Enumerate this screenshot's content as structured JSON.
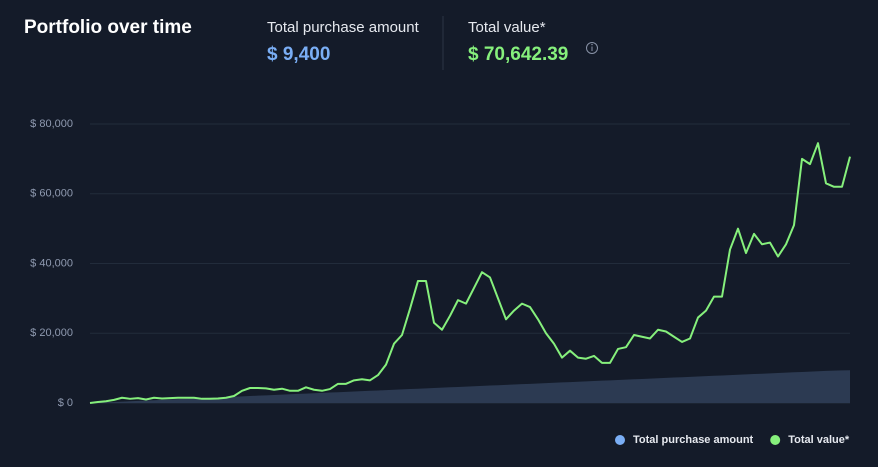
{
  "title": "Portfolio over time",
  "summary": [
    {
      "label": "Total purchase amount",
      "value": "$ 9,400"
    },
    {
      "label": "Total value*",
      "value": "$ 70,642.39"
    }
  ],
  "chart_data": {
    "type": "line",
    "ylim": [
      0,
      80000
    ],
    "yticks": [
      {
        "value": 0,
        "label": "$ 0"
      },
      {
        "value": 20000,
        "label": "$ 20,000"
      },
      {
        "value": 40000,
        "label": "$ 40,000"
      },
      {
        "value": 60000,
        "label": "$ 60,000"
      },
      {
        "value": 80000,
        "label": "$ 80,000"
      }
    ],
    "grid": true,
    "legend": "bottom-right",
    "series": [
      {
        "name": "Total purchase amount",
        "color": "#7aaef5",
        "area_color": "#2c3a52",
        "values": [
          0,
          100,
          200,
          300,
          400,
          500,
          600,
          700,
          800,
          900,
          1000,
          1100,
          1200,
          1300,
          1400,
          1500,
          1600,
          1700,
          1800,
          1900,
          2000,
          2100,
          2200,
          2300,
          2400,
          2500,
          2600,
          2700,
          2800,
          2900,
          3000,
          3100,
          3200,
          3300,
          3400,
          3500,
          3600,
          3700,
          3800,
          3900,
          4000,
          4100,
          4200,
          4300,
          4400,
          4500,
          4600,
          4700,
          4800,
          4900,
          5000,
          5100,
          5200,
          5300,
          5400,
          5500,
          5600,
          5700,
          5800,
          5900,
          6000,
          6100,
          6200,
          6300,
          6400,
          6500,
          6600,
          6700,
          6800,
          6900,
          7000,
          7100,
          7200,
          7300,
          7400,
          7500,
          7600,
          7700,
          7800,
          7900,
          8000,
          8100,
          8200,
          8300,
          8400,
          8500,
          8600,
          8700,
          8800,
          8900,
          9000,
          9100,
          9200,
          9300,
          9350,
          9400
        ]
      },
      {
        "name": "Total value*",
        "color": "#86f07c",
        "values": [
          0,
          300,
          500,
          900,
          1500,
          1200,
          1400,
          1000,
          1500,
          1300,
          1400,
          1500,
          1500,
          1500,
          1200,
          1200,
          1300,
          1500,
          2000,
          3500,
          4300,
          4300,
          4200,
          3800,
          4100,
          3500,
          3500,
          4500,
          3800,
          3500,
          4000,
          5500,
          5500,
          6500,
          6800,
          6500,
          8000,
          11000,
          17000,
          19500,
          27000,
          35000,
          35000,
          23000,
          21000,
          25000,
          29500,
          28500,
          33000,
          37500,
          36000,
          30000,
          24000,
          26500,
          28500,
          27500,
          24000,
          20000,
          17000,
          13000,
          15000,
          13000,
          12700,
          13500,
          11500,
          11500,
          15500,
          16000,
          19500,
          19000,
          18500,
          21000,
          20500,
          19000,
          17500,
          18500,
          24500,
          26500,
          30500,
          30500,
          44000,
          50000,
          43000,
          48500,
          45500,
          46000,
          42000,
          45500,
          51000,
          70000,
          68500,
          74500,
          63000,
          62000,
          62000,
          70642.39
        ]
      }
    ]
  }
}
